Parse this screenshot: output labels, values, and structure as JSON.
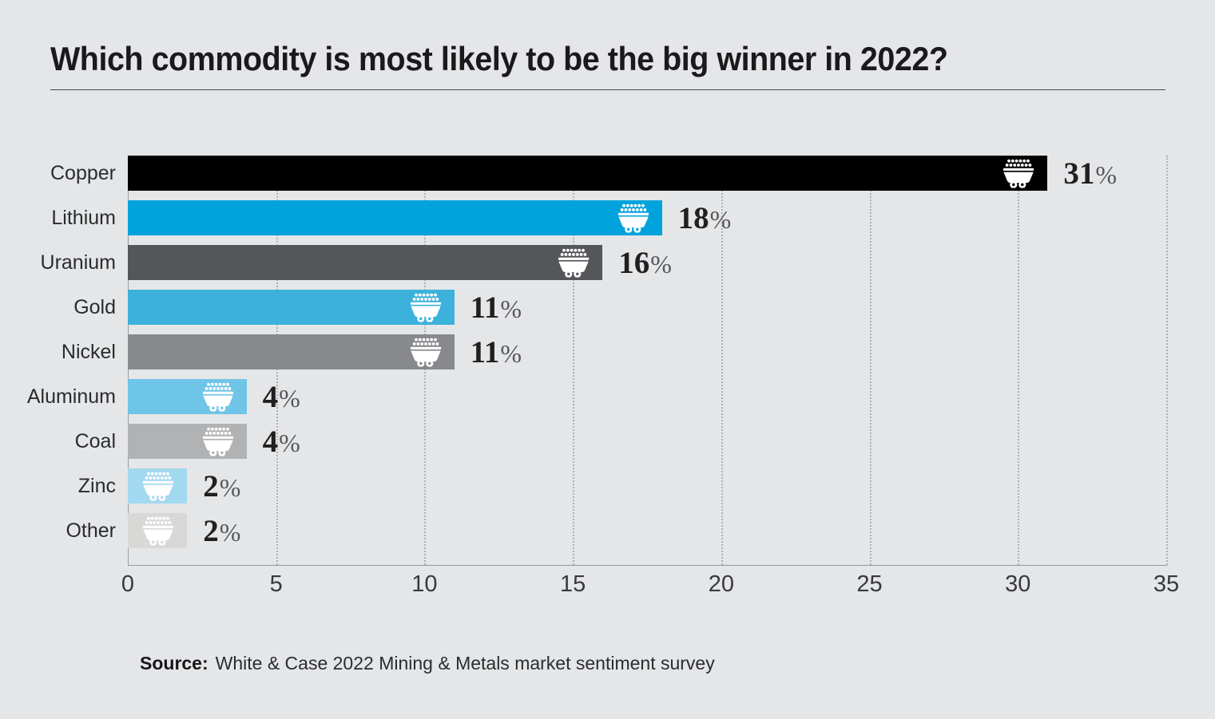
{
  "title": "Which commodity is most likely to be the big winner in 2022?",
  "source": {
    "prefix": "Source:",
    "text": "White & Case 2022 Mining & Metals market sentiment survey"
  },
  "chart_data": {
    "type": "bar",
    "orientation": "horizontal",
    "title": "Which commodity is most likely to be the big winner in 2022?",
    "categories": [
      "Copper",
      "Lithium",
      "Uranium",
      "Gold",
      "Nickel",
      "Aluminum",
      "Coal",
      "Zinc",
      "Other"
    ],
    "values": [
      31,
      18,
      16,
      11,
      11,
      4,
      4,
      2,
      2
    ],
    "value_labels": [
      "31%",
      "18%",
      "16%",
      "11%",
      "11%",
      "4%",
      "4%",
      "2%",
      "2%"
    ],
    "percent_sign": "%",
    "bar_colors": [
      "#000000",
      "#00a3dc",
      "#54565a",
      "#3cb1dc",
      "#87898c",
      "#6fc5e8",
      "#b0b2b3",
      "#a3d9f0",
      "#d8d8d6"
    ],
    "bar_icon": "mine-cart-icon",
    "xlabel": "",
    "ylabel": "",
    "xlim": [
      0,
      35
    ],
    "x_ticks": [
      0,
      5,
      10,
      15,
      20,
      25,
      30,
      35
    ],
    "grid": "vertical-dotted",
    "legend": "none"
  },
  "colors": {
    "background": "#e5e6e7",
    "axis": "#98999b",
    "gridline": "#aeb0b2",
    "title_text": "#1a1a1c",
    "category_text": "#2a2b2d",
    "value_number": "#221f21",
    "value_percent": "#57585c",
    "icon_fill": "#ffffff"
  }
}
